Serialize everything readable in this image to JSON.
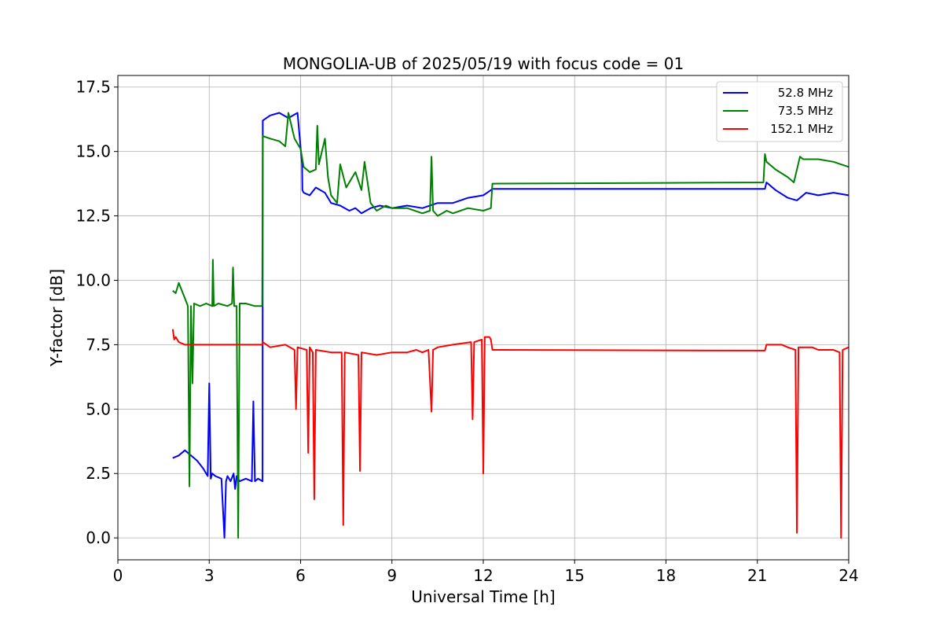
{
  "chart_data": {
    "type": "line",
    "title": "MONGOLIA-UB of 2025/05/19 with focus code = 01",
    "xlabel": "Universal Time [h]",
    "ylabel": "Y-factor [dB]",
    "xlim": [
      0,
      24
    ],
    "ylim": [
      -0.85,
      17.95
    ],
    "xticks": [
      0,
      3,
      6,
      9,
      12,
      15,
      18,
      21,
      24
    ],
    "xtick_labels": [
      "0",
      "3",
      "6",
      "9",
      "12",
      "15",
      "18",
      "21",
      "24"
    ],
    "yticks": [
      0.0,
      2.5,
      5.0,
      7.5,
      10.0,
      12.5,
      15.0,
      17.5
    ],
    "ytick_labels": [
      "0.0",
      "2.5",
      "5.0",
      "7.5",
      "10.0",
      "12.5",
      "15.0",
      "17.5"
    ],
    "grid": true,
    "legend_position": "top-right",
    "series": [
      {
        "name": "52.8 MHz",
        "color": "#0000ff",
        "x": [
          1.8,
          2.0,
          2.2,
          2.4,
          2.6,
          2.8,
          2.95,
          3.0,
          3.05,
          3.1,
          3.2,
          3.4,
          3.5,
          3.55,
          3.6,
          3.7,
          3.8,
          3.85,
          3.9,
          4.0,
          4.2,
          4.4,
          4.45,
          4.5,
          4.6,
          4.75,
          4.76,
          5.0,
          5.3,
          5.6,
          5.9,
          6.05,
          6.06,
          6.1,
          6.3,
          6.5,
          6.8,
          7.0,
          7.3,
          7.6,
          7.8,
          8.0,
          8.3,
          8.6,
          9.0,
          9.5,
          10.0,
          10.5,
          11.0,
          11.5,
          12.0,
          12.25,
          12.3,
          18.0,
          21.25,
          21.3,
          21.6,
          22.0,
          22.3,
          22.6,
          23.0,
          23.5,
          24.0
        ],
        "y": [
          3.1,
          3.2,
          3.4,
          3.2,
          3.0,
          2.7,
          2.4,
          6.0,
          2.3,
          2.5,
          2.4,
          2.3,
          0.0,
          2.2,
          2.4,
          2.2,
          2.5,
          1.9,
          2.4,
          2.2,
          2.3,
          2.2,
          5.3,
          2.2,
          2.3,
          2.2,
          16.2,
          16.4,
          16.5,
          16.3,
          16.5,
          14.5,
          13.5,
          13.4,
          13.3,
          13.6,
          13.4,
          13.0,
          12.9,
          12.7,
          12.8,
          12.6,
          12.8,
          12.9,
          12.8,
          12.9,
          12.8,
          13.0,
          13.0,
          13.2,
          13.3,
          13.5,
          13.55,
          13.55,
          13.55,
          13.8,
          13.5,
          13.2,
          13.1,
          13.4,
          13.3,
          13.4,
          13.3
        ]
      },
      {
        "name": "73.5 MHz",
        "color": "#008000",
        "x": [
          1.8,
          1.9,
          2.0,
          2.1,
          2.2,
          2.3,
          2.35,
          2.4,
          2.45,
          2.5,
          2.7,
          2.9,
          3.1,
          3.12,
          3.15,
          3.3,
          3.6,
          3.75,
          3.78,
          3.82,
          3.9,
          3.95,
          4.0,
          4.2,
          4.5,
          4.74,
          4.76,
          5.0,
          5.3,
          5.5,
          5.6,
          5.8,
          6.0,
          6.1,
          6.3,
          6.5,
          6.55,
          6.6,
          6.8,
          6.9,
          7.0,
          7.2,
          7.3,
          7.5,
          7.7,
          7.8,
          8.0,
          8.1,
          8.3,
          8.5,
          8.8,
          9.0,
          9.5,
          10.0,
          10.25,
          10.3,
          10.35,
          10.5,
          10.8,
          11.0,
          11.5,
          12.0,
          12.25,
          12.3,
          18.0,
          21.2,
          21.25,
          21.3,
          21.6,
          22.0,
          22.2,
          22.4,
          22.5,
          23.0,
          23.5,
          24.0
        ],
        "y": [
          9.6,
          9.5,
          9.9,
          9.6,
          9.3,
          9.0,
          2.0,
          9.0,
          6.0,
          9.1,
          9.0,
          9.1,
          9.0,
          10.8,
          9.0,
          9.1,
          9.0,
          9.1,
          10.5,
          9.0,
          9.0,
          0.0,
          9.1,
          9.1,
          9.0,
          9.0,
          15.6,
          15.5,
          15.4,
          15.2,
          16.5,
          15.5,
          15.1,
          14.4,
          14.2,
          14.3,
          16.0,
          14.5,
          15.5,
          14.0,
          13.3,
          13.0,
          14.5,
          13.6,
          14.0,
          14.2,
          13.5,
          14.6,
          13.0,
          12.7,
          12.9,
          12.8,
          12.8,
          12.6,
          12.7,
          14.8,
          12.7,
          12.5,
          12.7,
          12.6,
          12.8,
          12.7,
          12.8,
          13.75,
          13.78,
          13.8,
          14.9,
          14.6,
          14.3,
          14.0,
          13.8,
          14.8,
          14.7,
          14.7,
          14.6,
          14.4
        ]
      },
      {
        "name": "152.1 MHz",
        "color": "#ff0000",
        "x": [
          1.8,
          1.85,
          1.9,
          2.0,
          2.2,
          2.4,
          2.6,
          3.0,
          3.5,
          4.0,
          4.5,
          4.74,
          4.76,
          5.0,
          5.5,
          5.8,
          5.85,
          5.9,
          6.2,
          6.25,
          6.3,
          6.4,
          6.45,
          6.5,
          7.0,
          7.35,
          7.4,
          7.45,
          7.9,
          7.95,
          8.0,
          8.5,
          9.0,
          9.5,
          9.8,
          10.0,
          10.2,
          10.3,
          10.35,
          10.5,
          11.0,
          11.6,
          11.65,
          11.7,
          11.95,
          12.0,
          12.05,
          12.2,
          12.25,
          12.3,
          18.0,
          21.25,
          21.3,
          21.8,
          22.0,
          22.25,
          22.3,
          22.35,
          22.8,
          23.0,
          23.5,
          23.7,
          23.75,
          23.8,
          24.0
        ],
        "y": [
          8.1,
          7.7,
          7.8,
          7.6,
          7.5,
          7.5,
          7.5,
          7.5,
          7.5,
          7.5,
          7.5,
          7.5,
          7.6,
          7.4,
          7.5,
          7.3,
          5.0,
          7.4,
          7.3,
          3.3,
          7.4,
          7.2,
          1.5,
          7.3,
          7.2,
          7.2,
          0.5,
          7.2,
          7.1,
          2.6,
          7.2,
          7.1,
          7.2,
          7.2,
          7.3,
          7.2,
          7.3,
          4.9,
          7.3,
          7.4,
          7.5,
          7.6,
          4.6,
          7.6,
          7.7,
          2.5,
          7.8,
          7.8,
          7.7,
          7.3,
          7.28,
          7.27,
          7.5,
          7.5,
          7.4,
          7.3,
          0.2,
          7.4,
          7.4,
          7.3,
          7.3,
          7.2,
          0.0,
          7.3,
          7.4
        ]
      }
    ]
  }
}
